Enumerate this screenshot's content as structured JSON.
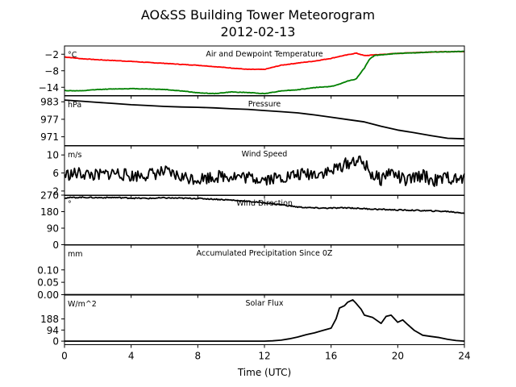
{
  "title_line1": "AO&SS Building Tower Meteorogram",
  "title_line2": "2012-02-13",
  "x_axis": {
    "label": "Time (UTC)",
    "range": [
      0,
      24
    ],
    "ticks": [
      0,
      4,
      8,
      12,
      16,
      20,
      24
    ],
    "tick_labels": [
      "0",
      "4",
      "8",
      "12",
      "16",
      "20",
      "24"
    ]
  },
  "colors": {
    "air": "#ff0000",
    "dewpoint": "#008000",
    "default": "#000000"
  },
  "chart_data": [
    {
      "type": "line",
      "title": "Air and Dewpoint Temperature",
      "unit": "°C",
      "ylim": [
        -17,
        1
      ],
      "yticks": [
        -2,
        -8,
        -14
      ],
      "ytick_labels": [
        "−2",
        "−8",
        "−14"
      ],
      "series": [
        {
          "key": "air",
          "x": [
            0,
            1,
            2,
            3,
            4,
            5,
            6,
            7,
            8,
            9,
            10,
            11,
            12,
            13,
            14,
            15,
            16,
            16.5,
            17,
            17.5,
            18,
            18.3,
            18.6,
            19,
            20,
            21,
            22,
            23,
            24
          ],
          "values": [
            -3.0,
            -3.6,
            -4.0,
            -4.3,
            -4.6,
            -5.0,
            -5.3,
            -5.7,
            -6.0,
            -6.5,
            -7.0,
            -7.5,
            -7.5,
            -6.0,
            -5.2,
            -4.5,
            -3.5,
            -2.8,
            -2.2,
            -1.6,
            -2.5,
            -2.4,
            -2.2,
            -2.1,
            -1.7,
            -1.4,
            -1.2,
            -1.1,
            -1.0
          ]
        },
        {
          "key": "dewpoint",
          "x": [
            0,
            1,
            2,
            3,
            4,
            5,
            6,
            7,
            8,
            9,
            10,
            11,
            12,
            13,
            14,
            15,
            16,
            16.5,
            17,
            17.5,
            18,
            18.3,
            18.6,
            19,
            20,
            21,
            22,
            23,
            24
          ],
          "values": [
            -15.2,
            -15.3,
            -14.8,
            -14.6,
            -14.5,
            -14.6,
            -14.8,
            -15.3,
            -16.0,
            -16.3,
            -15.7,
            -15.9,
            -16.3,
            -15.3,
            -14.9,
            -14.1,
            -13.7,
            -12.9,
            -11.7,
            -11.0,
            -7.0,
            -3.8,
            -2.5,
            -2.2,
            -1.7,
            -1.5,
            -1.2,
            -1.1,
            -1.0
          ]
        }
      ]
    },
    {
      "type": "line",
      "title": "Pressure",
      "unit": "hPa",
      "ylim": [
        968,
        985
      ],
      "yticks": [
        983,
        977,
        971
      ],
      "ytick_labels": [
        "983",
        "977",
        "971"
      ],
      "series": [
        {
          "key": "default",
          "x": [
            0,
            1,
            2,
            3,
            4,
            5,
            6,
            7,
            8,
            9,
            10,
            11,
            12,
            13,
            14,
            15,
            16,
            17,
            18,
            19,
            20,
            21,
            22,
            23,
            24
          ],
          "values": [
            983.6,
            983.2,
            982.8,
            982.4,
            982.0,
            981.7,
            981.4,
            981.2,
            981.1,
            980.9,
            980.6,
            980.4,
            980.0,
            979.6,
            979.2,
            978.5,
            977.7,
            976.9,
            976.1,
            974.6,
            973.3,
            972.4,
            971.4,
            970.5,
            970.3
          ]
        }
      ]
    },
    {
      "type": "line",
      "title": "Wind Speed",
      "unit": "m/s",
      "ylim": [
        1,
        12
      ],
      "yticks": [
        10,
        6,
        2
      ],
      "ytick_labels": [
        "10",
        "6",
        "2"
      ],
      "series": [
        {
          "key": "default",
          "x": [
            0,
            1,
            2,
            3,
            4,
            5,
            6,
            7,
            8,
            9,
            10,
            11,
            12,
            13,
            14,
            15,
            16,
            16.5,
            17,
            17.5,
            18,
            18.5,
            19,
            19.5,
            20,
            20.5,
            21,
            21.5,
            22,
            22.5,
            23,
            23.5,
            24
          ],
          "values": [
            5.6,
            5.9,
            5.4,
            6.1,
            5.3,
            5.7,
            6.2,
            5.1,
            4.7,
            5.2,
            5.4,
            5.0,
            4.7,
            5.0,
            5.6,
            5.9,
            6.3,
            7.4,
            8.1,
            8.9,
            8.0,
            5.4,
            4.6,
            6.4,
            5.3,
            4.1,
            4.9,
            5.6,
            4.4,
            4.3,
            5.1,
            4.4,
            4.7
          ]
        }
      ]
    },
    {
      "type": "line",
      "title": "Wind Direction",
      "unit": "°",
      "ylim": [
        0,
        270
      ],
      "yticks": [
        270,
        180,
        90,
        0
      ],
      "ytick_labels": [
        "270",
        "180",
        "90",
        "0"
      ],
      "series": [
        {
          "key": "default",
          "x": [
            0,
            1,
            2,
            3,
            4,
            5,
            6,
            7,
            8,
            9,
            10,
            11,
            12,
            13,
            14,
            15,
            16,
            17,
            18,
            19,
            20,
            21,
            22,
            23,
            24
          ],
          "values": [
            255,
            258,
            256,
            257,
            254,
            252,
            255,
            253,
            252,
            248,
            243,
            236,
            228,
            218,
            205,
            200,
            199,
            201,
            196,
            192,
            189,
            187,
            184,
            181,
            172
          ]
        }
      ]
    },
    {
      "type": "line",
      "title": "Accumulated Precipitation Since 0Z",
      "unit": "mm",
      "ylim": [
        0,
        0.2
      ],
      "yticks": [
        0.1,
        0.05,
        0.0
      ],
      "ytick_labels": [
        "0.10",
        "0.05",
        "0.00"
      ],
      "series": [
        {
          "key": "default",
          "x": [
            0,
            24
          ],
          "values": [
            0,
            0
          ]
        }
      ]
    },
    {
      "type": "line",
      "title": "Solar Flux",
      "unit": "W/m^2",
      "ylim": [
        -30,
        390
      ],
      "yticks": [
        188,
        94,
        0
      ],
      "ytick_labels": [
        "188",
        "94",
        "0"
      ],
      "series": [
        {
          "key": "default",
          "x": [
            0,
            6,
            12,
            12.5,
            13,
            13.5,
            14,
            14.5,
            15,
            15.5,
            16,
            16.3,
            16.5,
            16.8,
            17,
            17.3,
            17.5,
            17.8,
            18,
            18.5,
            19,
            19.3,
            19.6,
            20,
            20.3,
            20.6,
            21,
            21.5,
            22,
            22.5,
            23,
            23.5,
            24
          ],
          "values": [
            0,
            0,
            0,
            3,
            8,
            20,
            35,
            55,
            70,
            90,
            110,
            190,
            280,
            300,
            330,
            350,
            320,
            270,
            220,
            200,
            150,
            210,
            220,
            160,
            180,
            140,
            90,
            50,
            40,
            30,
            15,
            5,
            0
          ]
        }
      ]
    }
  ]
}
